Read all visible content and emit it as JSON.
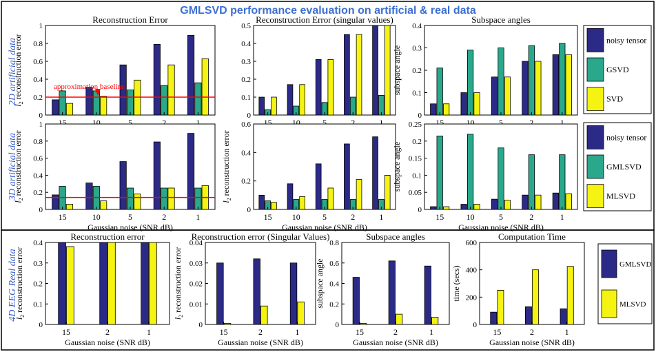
{
  "title": "GMLSVD performance evaluation on artificial & real data",
  "colors": {
    "noisy": "#2b2a87",
    "gsvd": "#2aa88c",
    "svd": "#f5f312",
    "title": "#3c6fd1",
    "rowlabel": "#3a5cc8",
    "baseline": "#ff0000"
  },
  "rows": [
    {
      "label": "2D artificial data",
      "legend": [
        "noisy tensor",
        "GSVD",
        "SVD"
      ]
    },
    {
      "label": "3D artificial data",
      "legend": [
        "noisy tensor",
        "GMLSVD",
        "MLSVD"
      ]
    },
    {
      "label": "4D EEG Real data",
      "legend": [
        "GMLSVD",
        "MLSVD"
      ]
    }
  ],
  "annotation": "approximation baseline",
  "chart_data": [
    {
      "type": "bar",
      "title": "Reconstruction Error",
      "ylabel": "l2 reconstruction error",
      "xlabel": "",
      "categories": [
        "15",
        "10",
        "5",
        "2",
        "1"
      ],
      "ylim": [
        0,
        1
      ],
      "yticks": [
        "0",
        "0.2",
        "0.4",
        "0.6",
        "0.8",
        "1"
      ],
      "baseline": 0.2,
      "series": [
        {
          "name": "noisy tensor",
          "values": [
            0.17,
            0.31,
            0.56,
            0.79,
            0.89
          ]
        },
        {
          "name": "GSVD",
          "values": [
            0.27,
            0.27,
            0.28,
            0.33,
            0.36
          ]
        },
        {
          "name": "SVD",
          "values": [
            0.13,
            0.21,
            0.39,
            0.56,
            0.63
          ]
        }
      ]
    },
    {
      "type": "bar",
      "title": "Reconstruction Error (singular values)",
      "ylabel": "",
      "xlabel": "",
      "categories": [
        "15",
        "10",
        "5",
        "2",
        "1"
      ],
      "ylim": [
        0,
        0.5
      ],
      "yticks": [
        "0",
        "0.1",
        "0.2",
        "0.3",
        "0.4",
        "0.5"
      ],
      "series": [
        {
          "name": "noisy tensor",
          "values": [
            0.1,
            0.17,
            0.31,
            0.45,
            0.5
          ]
        },
        {
          "name": "GSVD",
          "values": [
            0.03,
            0.05,
            0.07,
            0.1,
            0.11
          ]
        },
        {
          "name": "SVD",
          "values": [
            0.1,
            0.17,
            0.31,
            0.45,
            0.5
          ]
        }
      ]
    },
    {
      "type": "bar",
      "title": "Subspace angles",
      "ylabel": "subspace angle",
      "xlabel": "",
      "categories": [
        "15",
        "10",
        "5",
        "2",
        "1"
      ],
      "ylim": [
        0,
        0.4
      ],
      "yticks": [
        "0",
        "0.1",
        "0.2",
        "0.3",
        "0.4"
      ],
      "series": [
        {
          "name": "noisy tensor",
          "values": [
            0.05,
            0.1,
            0.17,
            0.24,
            0.27
          ]
        },
        {
          "name": "GSVD",
          "values": [
            0.21,
            0.29,
            0.3,
            0.31,
            0.32
          ]
        },
        {
          "name": "SVD",
          "values": [
            0.05,
            0.1,
            0.17,
            0.24,
            0.27
          ]
        }
      ]
    },
    {
      "type": "bar",
      "title": "",
      "ylabel": "l2 reconstruction error",
      "xlabel": "Gaussian noise (SNR dB)",
      "categories": [
        "15",
        "10",
        "5",
        "2",
        "1"
      ],
      "ylim": [
        0,
        1
      ],
      "yticks": [
        "0",
        "0.2",
        "0.4",
        "0.6",
        "0.8",
        "1"
      ],
      "baseline": 0.14,
      "series": [
        {
          "name": "noisy tensor",
          "values": [
            0.17,
            0.31,
            0.56,
            0.79,
            0.89
          ]
        },
        {
          "name": "GMLSVD",
          "values": [
            0.27,
            0.27,
            0.25,
            0.25,
            0.25
          ]
        },
        {
          "name": "MLSVD",
          "values": [
            0.06,
            0.1,
            0.18,
            0.25,
            0.28
          ]
        }
      ]
    },
    {
      "type": "bar",
      "title": "",
      "ylabel": "l2 reconstruction error",
      "xlabel": "Gaussian noise (SNR dB)",
      "categories": [
        "15",
        "10",
        "5",
        "2",
        "1"
      ],
      "ylim": [
        0,
        0.6
      ],
      "yticks": [
        "0",
        "0.2",
        "0.4",
        "0.6"
      ],
      "series": [
        {
          "name": "noisy tensor",
          "values": [
            0.1,
            0.18,
            0.32,
            0.46,
            0.51
          ]
        },
        {
          "name": "GMLSVD",
          "values": [
            0.06,
            0.07,
            0.07,
            0.07,
            0.07
          ]
        },
        {
          "name": "MLSVD",
          "values": [
            0.05,
            0.09,
            0.15,
            0.21,
            0.24
          ]
        }
      ]
    },
    {
      "type": "bar",
      "title": "",
      "ylabel": "subspace angle",
      "xlabel": "Gaussian noise (SNR dB)",
      "categories": [
        "15",
        "10",
        "5",
        "2",
        "1"
      ],
      "ylim": [
        0,
        0.25
      ],
      "yticks": [
        "0",
        "0.05",
        "0.1",
        "0.15",
        "0.2",
        "0.25"
      ],
      "series": [
        {
          "name": "noisy tensor",
          "values": [
            0.008,
            0.015,
            0.03,
            0.042,
            0.048
          ]
        },
        {
          "name": "GMLSVD",
          "values": [
            0.215,
            0.22,
            0.18,
            0.16,
            0.16
          ]
        },
        {
          "name": "MLSVD",
          "values": [
            0.008,
            0.015,
            0.027,
            0.042,
            0.046
          ]
        }
      ]
    },
    {
      "type": "bar",
      "title": "Reconstruction error",
      "ylabel": "l2 reconstruction error",
      "xlabel": "Gaussian noise (SNR dB)",
      "categories": [
        "15",
        "2",
        "1"
      ],
      "ylim": [
        0,
        0.4
      ],
      "yticks": [
        "0",
        "0.1",
        "0.2",
        "0.3",
        "0.4"
      ],
      "series": [
        {
          "name": "GMLSVD",
          "values": [
            0.4,
            0.4,
            0.4
          ]
        },
        {
          "name": "MLSVD",
          "values": [
            0.38,
            0.4,
            0.4
          ]
        }
      ]
    },
    {
      "type": "bar",
      "title": "Reconstruction error (Singular Values)",
      "ylabel": "l2 reconstruction error",
      "xlabel": "Gaussian noise (SNR dB)",
      "categories": [
        "15",
        "2",
        "1"
      ],
      "ylim": [
        0,
        0.04
      ],
      "yticks": [
        "0",
        "0.01",
        "0.02",
        "0.03",
        "0.04"
      ],
      "series": [
        {
          "name": "GMLSVD",
          "values": [
            0.03,
            0.032,
            0.03
          ]
        },
        {
          "name": "MLSVD",
          "values": [
            0.0005,
            0.009,
            0.011
          ]
        }
      ]
    },
    {
      "type": "bar",
      "title": "Subspace angles",
      "ylabel": "subspace angle",
      "xlabel": "Gaussian noise (SNR dB)",
      "categories": [
        "15",
        "2",
        "1"
      ],
      "ylim": [
        0,
        0.8
      ],
      "yticks": [
        "0",
        "0.2",
        "0.4",
        "0.6",
        "0.8"
      ],
      "series": [
        {
          "name": "GMLSVD",
          "values": [
            0.46,
            0.62,
            0.57
          ]
        },
        {
          "name": "MLSVD",
          "values": [
            0.01,
            0.1,
            0.07
          ]
        }
      ]
    },
    {
      "type": "bar",
      "title": "Computation Time",
      "ylabel": "time (secs)",
      "xlabel": "Gaussian noise (SNR dB)",
      "categories": [
        "15",
        "2",
        "1"
      ],
      "ylim": [
        0,
        600
      ],
      "yticks": [
        "0",
        "200",
        "400",
        "600"
      ],
      "series": [
        {
          "name": "GMLSVD",
          "values": [
            90,
            130,
            115
          ]
        },
        {
          "name": "MLSVD",
          "values": [
            250,
            400,
            425
          ]
        }
      ]
    }
  ]
}
